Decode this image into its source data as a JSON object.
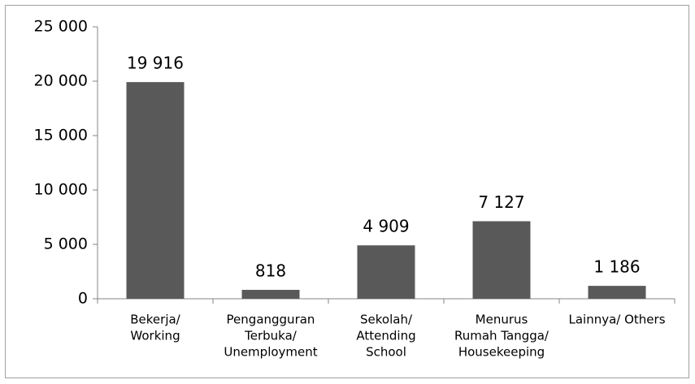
{
  "chart_data": {
    "type": "bar",
    "categories": [
      [
        "Bekerja/",
        "Working"
      ],
      [
        "Pengangguran",
        "Terbuka/",
        "Unemployment"
      ],
      [
        "Sekolah/",
        "Attending",
        "School"
      ],
      [
        "Menurus",
        "Rumah Tangga/",
        "Housekeeping"
      ],
      [
        "Lainnya/ Others"
      ]
    ],
    "values": [
      19916,
      818,
      4909,
      7127,
      1186
    ],
    "value_labels": [
      "19 916",
      "818",
      "4 909",
      "7 127",
      "1 186"
    ],
    "color": "#595959",
    "ylim": [
      0,
      25000
    ],
    "yticks": [
      0,
      {
        "value": 5000,
        "label": "5 000"
      },
      {
        "value": 10000,
        "label": "10 000"
      },
      {
        "value": 15000,
        "label": "15 000"
      },
      {
        "value": 20000,
        "label": "20 000"
      },
      {
        "value": 25000,
        "label": "25 000"
      }
    ],
    "grid": false
  }
}
